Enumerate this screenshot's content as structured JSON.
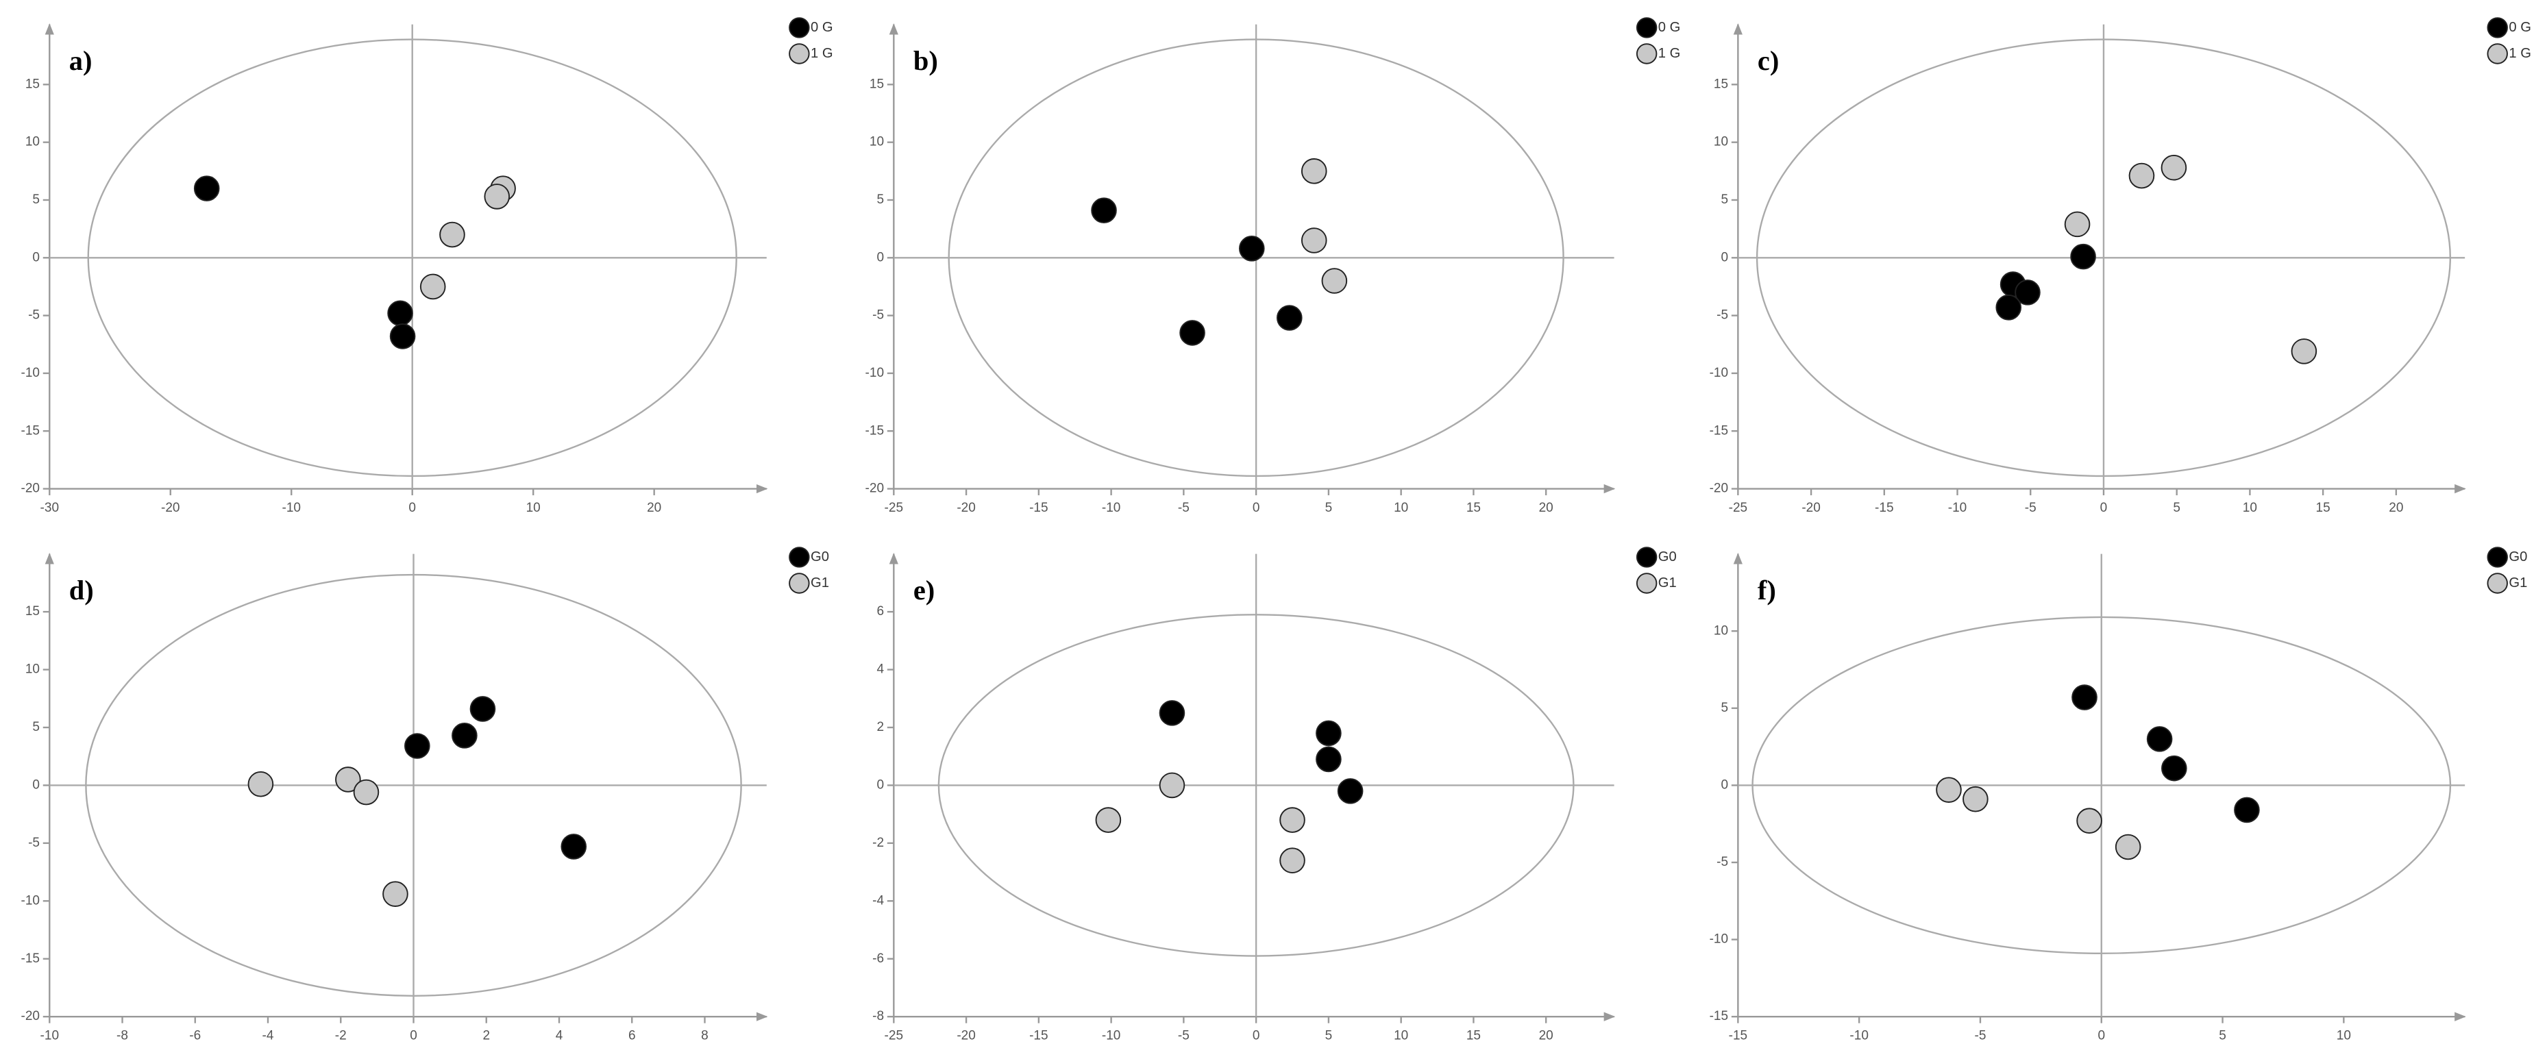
{
  "chart_data": [
    {
      "type": "scatter",
      "title": "a)",
      "xlim": [
        -30,
        29.3
      ],
      "ylim": [
        -20,
        20.2
      ],
      "xticks": [
        -30,
        -20,
        -10,
        0,
        10,
        20
      ],
      "yticks": [
        -20,
        -15,
        -10,
        -5,
        0,
        5,
        10,
        15
      ],
      "ellipse": [
        26.8,
        18.9
      ],
      "series": [
        {
          "name": "0 G",
          "color": "#000000",
          "x": [
            -17,
            -1,
            -0.8
          ],
          "values": [
            6,
            -4.8,
            -6.8
          ]
        },
        {
          "name": "1 G",
          "color": "#c8c8c8",
          "x": [
            7.5,
            7,
            3.3,
            1.7
          ],
          "values": [
            6,
            5.3,
            2,
            -2.5
          ]
        }
      ]
    },
    {
      "type": "scatter",
      "title": "b)",
      "xlim": [
        -25,
        24.7
      ],
      "ylim": [
        -20,
        20.2
      ],
      "xticks": [
        -25,
        -20,
        -15,
        -10,
        -5,
        0,
        5,
        10,
        15,
        20
      ],
      "yticks": [
        -20,
        -15,
        -10,
        -5,
        0,
        5,
        10,
        15
      ],
      "ellipse": [
        21.2,
        18.9
      ],
      "series": [
        {
          "name": "0 G",
          "color": "#000000",
          "x": [
            -10.5,
            -0.3,
            -4.4,
            2.3
          ],
          "values": [
            4.1,
            0.8,
            -6.5,
            -5.2
          ]
        },
        {
          "name": "1 G",
          "color": "#c8c8c8",
          "x": [
            4,
            4,
            5.4
          ],
          "values": [
            7.5,
            1.5,
            -2
          ]
        }
      ]
    },
    {
      "type": "scatter",
      "title": "c)",
      "xlim": [
        -25,
        24.7
      ],
      "ylim": [
        -20,
        20.2
      ],
      "xticks": [
        -25,
        -20,
        -15,
        -10,
        -5,
        0,
        5,
        10,
        15,
        20
      ],
      "yticks": [
        -20,
        -15,
        -10,
        -5,
        0,
        5,
        10,
        15
      ],
      "ellipse": [
        23.7,
        18.9
      ],
      "series": [
        {
          "name": "0 G",
          "color": "#000000",
          "x": [
            -1.4,
            -6.2,
            -5.2,
            -6.5
          ],
          "values": [
            0.1,
            -2.3,
            -3,
            -4.3
          ]
        },
        {
          "name": "1 G",
          "color": "#c8c8c8",
          "x": [
            -1.8,
            2.6,
            4.8,
            13.7
          ],
          "values": [
            2.9,
            7.1,
            7.8,
            -8.1
          ]
        }
      ]
    },
    {
      "type": "scatter",
      "title": "d)",
      "xlim": [
        -10,
        9.7
      ],
      "ylim": [
        -20,
        20
      ],
      "xticks": [
        -10,
        -8,
        -6,
        -4,
        -2,
        0,
        2,
        4,
        6,
        8
      ],
      "yticks": [
        -20,
        -15,
        -10,
        -5,
        0,
        5,
        10,
        15
      ],
      "ellipse": [
        9.0,
        18.2
      ],
      "series": [
        {
          "name": "G0",
          "color": "#000000",
          "x": [
            0.1,
            1.4,
            1.9,
            4.4
          ],
          "values": [
            3.4,
            4.3,
            6.6,
            -5.3
          ]
        },
        {
          "name": "G1",
          "color": "#c8c8c8",
          "x": [
            -4.2,
            -1.8,
            -1.3,
            -0.5
          ],
          "values": [
            0.1,
            0.5,
            -0.6,
            -9.4
          ]
        }
      ]
    },
    {
      "type": "scatter",
      "title": "e)",
      "xlim": [
        -25,
        24.7
      ],
      "ylim": [
        -8,
        8
      ],
      "xticks": [
        -25,
        -20,
        -15,
        -10,
        -5,
        0,
        5,
        10,
        15,
        20
      ],
      "yticks": [
        -8,
        -6,
        -4,
        -2,
        0,
        2,
        4,
        6
      ],
      "ellipse": [
        21.9,
        5.9
      ],
      "series": [
        {
          "name": "G0",
          "color": "#000000",
          "x": [
            -5.8,
            5,
            5,
            6.5
          ],
          "values": [
            2.5,
            1.8,
            0.9,
            -0.2
          ]
        },
        {
          "name": "G1",
          "color": "#c8c8c8",
          "x": [
            -10.2,
            -5.8,
            2.5,
            2.5
          ],
          "values": [
            -1.2,
            0,
            -1.2,
            -2.6
          ]
        }
      ]
    },
    {
      "type": "scatter",
      "title": "f)",
      "xlim": [
        -15,
        15
      ],
      "ylim": [
        -15,
        15
      ],
      "xticks": [
        -15,
        -10,
        -5,
        0,
        5,
        10
      ],
      "yticks": [
        -15,
        -10,
        -5,
        0,
        5,
        10
      ],
      "ellipse": [
        14.4,
        10.9
      ],
      "series": [
        {
          "name": "G0",
          "color": "#000000",
          "x": [
            -0.7,
            2.4,
            3.0,
            6.0
          ],
          "values": [
            5.7,
            3.0,
            1.1,
            -1.6
          ]
        },
        {
          "name": "G1",
          "color": "#c8c8c8",
          "x": [
            -6.3,
            -5.2,
            -0.5,
            1.1
          ],
          "values": [
            -0.3,
            -0.9,
            -2.3,
            -4.0
          ]
        }
      ]
    }
  ]
}
